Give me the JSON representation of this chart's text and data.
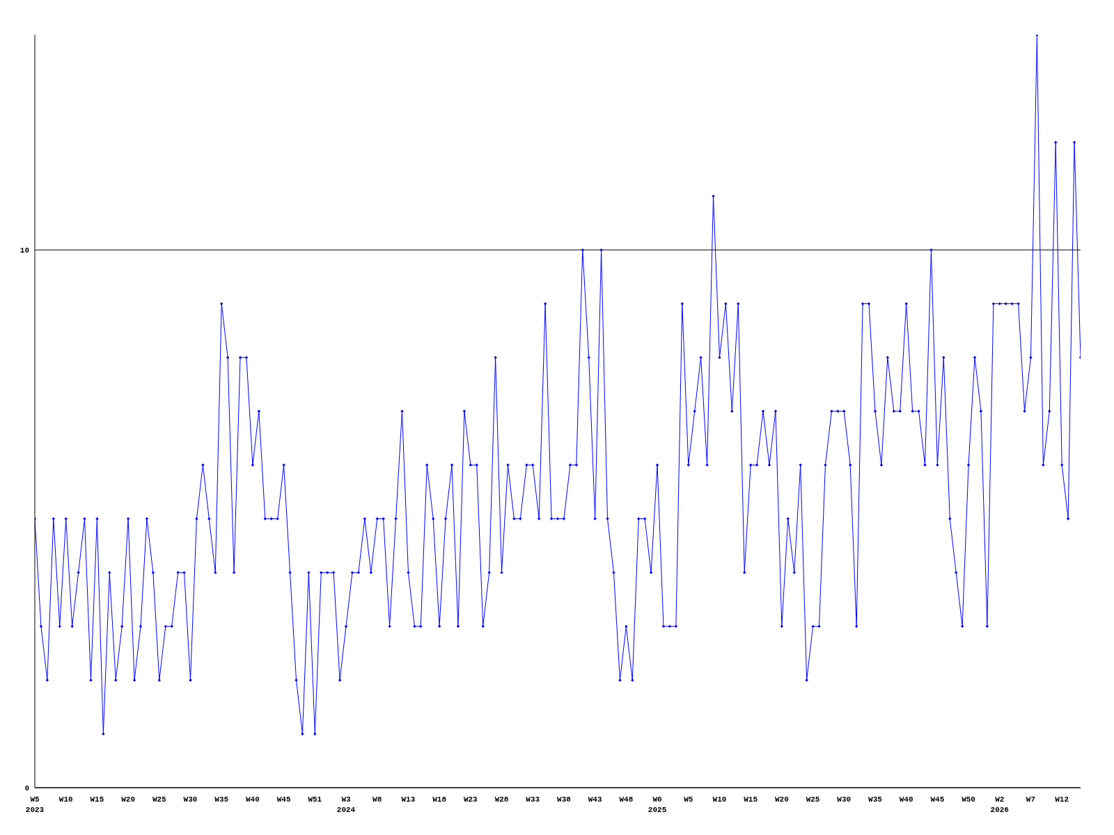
{
  "chart_data": {
    "type": "line",
    "categories": [
      "W5\n2023",
      null,
      null,
      null,
      null,
      "W10",
      null,
      null,
      null,
      null,
      "W15",
      null,
      null,
      null,
      null,
      "W20",
      null,
      null,
      null,
      null,
      "W25",
      null,
      null,
      null,
      null,
      "W30",
      null,
      null,
      null,
      null,
      "W35",
      null,
      null,
      null,
      null,
      "W40",
      null,
      null,
      null,
      null,
      "W45",
      null,
      null,
      null,
      null,
      "W51",
      null,
      null,
      null,
      null,
      "W3\n2024",
      null,
      null,
      null,
      null,
      "W8",
      null,
      null,
      null,
      null,
      "W13",
      null,
      null,
      null,
      null,
      "W18",
      null,
      null,
      null,
      null,
      "W23",
      null,
      null,
      null,
      null,
      "W28",
      null,
      null,
      null,
      null,
      "W33",
      null,
      null,
      null,
      null,
      "W38",
      null,
      null,
      null,
      null,
      "W43",
      null,
      null,
      null,
      null,
      "W48",
      null,
      null,
      null,
      null,
      "W0\n2025",
      null,
      null,
      null,
      null,
      "W5",
      null,
      null,
      null,
      null,
      "W10",
      null,
      null,
      null,
      null,
      "W15",
      null,
      null,
      null,
      null,
      "W20",
      null,
      null,
      null,
      null,
      "W25",
      null,
      null,
      null,
      null,
      "W30",
      null,
      null,
      null,
      null,
      "W35",
      null,
      null,
      null,
      null,
      "W40",
      null,
      null,
      null,
      null,
      "W45",
      null,
      null,
      null,
      null,
      "W50",
      null,
      null,
      null,
      null,
      "W2\n2026",
      null,
      null,
      null,
      null,
      "W7",
      null,
      null,
      null,
      null,
      "W12",
      null,
      null,
      null
    ],
    "series": [
      {
        "color": "#0000ff",
        "values": [
          5,
          3,
          2,
          5,
          3,
          5,
          3,
          4,
          5,
          2,
          5,
          1,
          4,
          2,
          3,
          5,
          2,
          3,
          5,
          4,
          2,
          3,
          3,
          4,
          4,
          2,
          5,
          6,
          5,
          4,
          9,
          8,
          4,
          8,
          8,
          6,
          7,
          5,
          5,
          5,
          6,
          4,
          2,
          1,
          4,
          1,
          4,
          4,
          4,
          2,
          3,
          4,
          4,
          5,
          4,
          5,
          5,
          3,
          5,
          7,
          4,
          3,
          3,
          6,
          5,
          3,
          5,
          6,
          3,
          7,
          6,
          6,
          3,
          4,
          8,
          4,
          6,
          5,
          5,
          6,
          6,
          5,
          9,
          5,
          5,
          5,
          6,
          6,
          10,
          8,
          5,
          10,
          5,
          4,
          2,
          3,
          2,
          5,
          5,
          4,
          6,
          3,
          3,
          3,
          9,
          6,
          7,
          8,
          6,
          11,
          8,
          9,
          7,
          9,
          4,
          6,
          6,
          7,
          6,
          7,
          3,
          5,
          4,
          6,
          2,
          3,
          3,
          6,
          7,
          7,
          7,
          6,
          3,
          9,
          9,
          7,
          6,
          8,
          7,
          7,
          9,
          7,
          7,
          6,
          10,
          6,
          8,
          5,
          4,
          3,
          6,
          8,
          7,
          3,
          9,
          9,
          9,
          9,
          9,
          7,
          8,
          14,
          6,
          7,
          12,
          6,
          5,
          12,
          8
        ]
      }
    ],
    "ylim": [
      0,
      14
    ],
    "yticks": [
      0,
      10
    ],
    "grid": "y",
    "marker": "diamond",
    "line_style": "solid"
  }
}
